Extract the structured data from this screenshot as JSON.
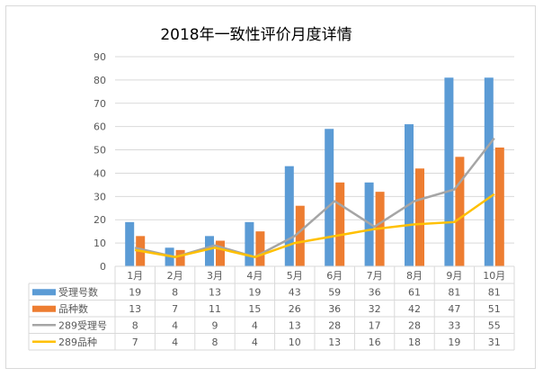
{
  "chart_data": {
    "type": "bar",
    "title": "2018年一致性评价月度详情",
    "categories": [
      "1月",
      "2月",
      "3月",
      "4月",
      "5月",
      "6月",
      "7月",
      "8月",
      "9月",
      "10月"
    ],
    "ylim": [
      0,
      90
    ],
    "yticks": [
      0,
      10,
      20,
      30,
      40,
      50,
      60,
      70,
      80,
      90
    ],
    "grid": true,
    "legend_placement": "data-table-left",
    "series": [
      {
        "name": "受理号数",
        "kind": "bar",
        "color": "#5b9bd5",
        "values": [
          19,
          8,
          13,
          19,
          43,
          59,
          36,
          61,
          81,
          81
        ]
      },
      {
        "name": "品种数",
        "kind": "bar",
        "color": "#ed7d31",
        "values": [
          13,
          7,
          11,
          15,
          26,
          36,
          32,
          42,
          47,
          51
        ]
      },
      {
        "name": "289受理号",
        "kind": "line",
        "color": "#a5a5a5",
        "values": [
          8,
          4,
          9,
          4,
          13,
          28,
          17,
          28,
          33,
          55
        ]
      },
      {
        "name": "289品种",
        "kind": "line",
        "color": "#ffc000",
        "values": [
          7,
          4,
          8,
          4,
          10,
          13,
          16,
          18,
          19,
          31
        ]
      }
    ]
  }
}
